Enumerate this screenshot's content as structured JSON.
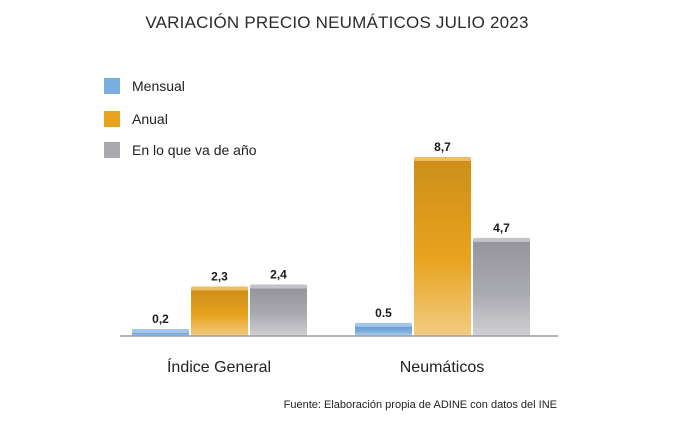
{
  "chart_data": {
    "type": "bar",
    "title": "VARIACIÓN PRECIO NEUMÁTICOS JULIO 2023",
    "categories": [
      "Índice General",
      "Neumáticos"
    ],
    "series": [
      {
        "name": "Mensual",
        "values": [
          0.2,
          0.5
        ],
        "labels": [
          "0,2",
          "0.5"
        ],
        "color": "#7aaee0"
      },
      {
        "name": "Anual",
        "values": [
          2.3,
          8.7
        ],
        "labels": [
          "2,3",
          "8,7"
        ],
        "color": "#e8a21e"
      },
      {
        "name": "En lo que va de año",
        "values": [
          2.4,
          4.7
        ],
        "labels": [
          "2,4",
          "4,7"
        ],
        "color": "#a9a9b0"
      }
    ],
    "ylim": [
      0,
      10
    ],
    "grid": false,
    "legend_position": "top-left",
    "source": "Fuente: Elaboración propia de ADINE con datos del INE"
  }
}
